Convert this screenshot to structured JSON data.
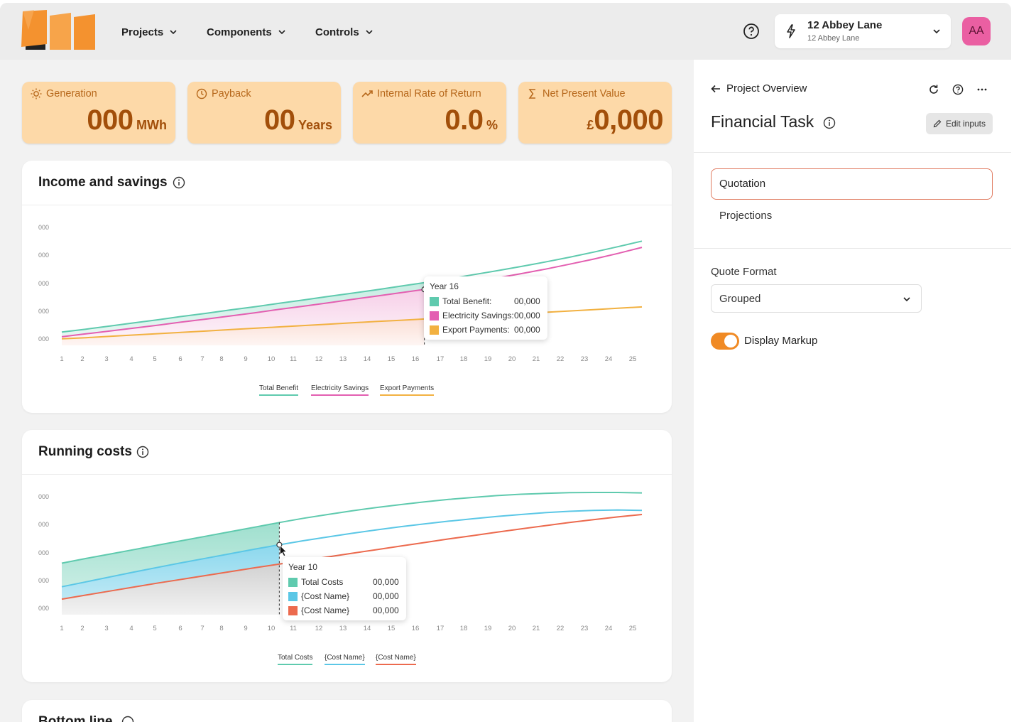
{
  "nav": {
    "projects": "Projects",
    "components": "Components",
    "controls": "Controls"
  },
  "project_select": {
    "title": "12 Abbey Lane",
    "subtitle": "12 Abbey Lane"
  },
  "avatar": "AA",
  "kpis": [
    {
      "label": "Generation",
      "value": "000",
      "unit": "MWh",
      "prefix": ""
    },
    {
      "label": "Payback",
      "value": "00",
      "unit": "Years",
      "prefix": ""
    },
    {
      "label": "Internal Rate of Return",
      "value": "0.0",
      "unit": "%",
      "prefix": ""
    },
    {
      "label": "Net Present Value",
      "value": "0,000",
      "unit": "",
      "prefix": "£"
    }
  ],
  "cards": {
    "income_title": "Income and savings",
    "running_title": "Running costs",
    "bottom_title": "Bottom line"
  },
  "tooltips": {
    "income": {
      "title": "Year 16",
      "rows": [
        {
          "label": "Total Benefit:",
          "value": "00,000"
        },
        {
          "label": "Electricity Savings:",
          "value": "00,000"
        },
        {
          "label": "Export Payments:",
          "value": "00,000"
        }
      ]
    },
    "running": {
      "title": "Year 10",
      "rows": [
        {
          "label": "Total Costs",
          "value": "00,000"
        },
        {
          "label": "{Cost Name}",
          "value": "00,000"
        },
        {
          "label": "{Cost Name}",
          "value": "00,000"
        }
      ]
    }
  },
  "right_panel": {
    "back_label": "Project Overview",
    "title": "Financial Task",
    "edit_label": "Edit inputs",
    "options": [
      "Quotation",
      "Projections"
    ],
    "quote_format_label": "Quote Format",
    "quote_format_value": "Grouped",
    "toggle_label": "Display Markup",
    "toggle_on": true
  },
  "colors": {
    "teal": "#5fcaae",
    "pink": "#e35fb1",
    "orange": "#f2b141",
    "blue": "#5bc7e6",
    "red": "#ec6a4e",
    "accent": "#f08a24"
  },
  "chart_data": [
    {
      "type": "line",
      "title": "Income and savings",
      "x": [
        1,
        2,
        3,
        4,
        5,
        6,
        7,
        8,
        9,
        10,
        11,
        12,
        13,
        14,
        15,
        16,
        17,
        18,
        19,
        20,
        21,
        22,
        23,
        24,
        25
      ],
      "y_tick_labels": [
        "000",
        "000",
        "000",
        "000",
        "000"
      ],
      "ylim": [
        0,
        5
      ],
      "highlighted_x": 16,
      "series": [
        {
          "name": "Total Benefit",
          "color": "#5fcaae",
          "values": [
            0.15,
            0.28,
            0.42,
            0.56,
            0.7,
            0.85,
            0.99,
            1.14,
            1.28,
            1.43,
            1.58,
            1.73,
            1.88,
            2.03,
            2.19,
            2.35,
            2.52,
            2.7,
            2.88,
            3.07,
            3.27,
            3.48,
            3.71,
            3.95,
            4.2
          ]
        },
        {
          "name": "Electricity Savings",
          "color": "#e35fb1",
          "values": [
            -0.06,
            0.07,
            0.2,
            0.33,
            0.46,
            0.6,
            0.73,
            0.87,
            1.01,
            1.16,
            1.3,
            1.45,
            1.6,
            1.75,
            1.9,
            2.05,
            2.21,
            2.38,
            2.56,
            2.75,
            2.95,
            3.17,
            3.4,
            3.65,
            3.92
          ]
        },
        {
          "name": "Export Payments",
          "color": "#f2b141",
          "values": [
            -0.15,
            -0.1,
            -0.04,
            0.02,
            0.08,
            0.14,
            0.2,
            0.26,
            0.32,
            0.38,
            0.44,
            0.5,
            0.56,
            0.62,
            0.67,
            0.73,
            0.79,
            0.85,
            0.91,
            0.97,
            1.03,
            1.09,
            1.15,
            1.21,
            1.27
          ]
        }
      ],
      "legend": [
        "Total Benefit",
        "Electricity Savings",
        "Export Payments"
      ]
    },
    {
      "type": "line",
      "title": "Running costs",
      "x": [
        1,
        2,
        3,
        4,
        5,
        6,
        7,
        8,
        9,
        10,
        11,
        12,
        13,
        14,
        15,
        16,
        17,
        18,
        19,
        20,
        21,
        22,
        23,
        24,
        25
      ],
      "y_tick_labels": [
        "000",
        "000",
        "000",
        "000",
        "000"
      ],
      "ylim": [
        0,
        5
      ],
      "highlighted_x": 10,
      "series": [
        {
          "name": "Total Costs",
          "color": "#5fcaae",
          "values": [
            1.85,
            2.06,
            2.26,
            2.46,
            2.66,
            2.86,
            3.06,
            3.26,
            3.46,
            3.66,
            3.85,
            4.02,
            4.18,
            4.33,
            4.46,
            4.58,
            4.69,
            4.78,
            4.86,
            4.92,
            4.96,
            4.99,
            5.0,
            5.0,
            4.98
          ]
        },
        {
          "name": "{Cost Name}",
          "color": "#5bc7e6",
          "values": [
            0.8,
            1.02,
            1.24,
            1.46,
            1.67,
            1.88,
            2.08,
            2.28,
            2.48,
            2.67,
            2.85,
            3.02,
            3.18,
            3.33,
            3.47,
            3.6,
            3.72,
            3.83,
            3.93,
            4.02,
            4.1,
            4.16,
            4.2,
            4.22,
            4.2
          ]
        },
        {
          "name": "{Cost Name}",
          "color": "#ec6a4e",
          "values": [
            0.25,
            0.43,
            0.61,
            0.79,
            0.97,
            1.14,
            1.31,
            1.48,
            1.65,
            1.81,
            1.97,
            2.13,
            2.29,
            2.45,
            2.61,
            2.77,
            2.93,
            3.08,
            3.23,
            3.38,
            3.52,
            3.66,
            3.79,
            3.91,
            4.02
          ]
        }
      ],
      "legend": [
        "Total Costs",
        "{Cost Name}",
        "{Cost Name}"
      ]
    }
  ]
}
